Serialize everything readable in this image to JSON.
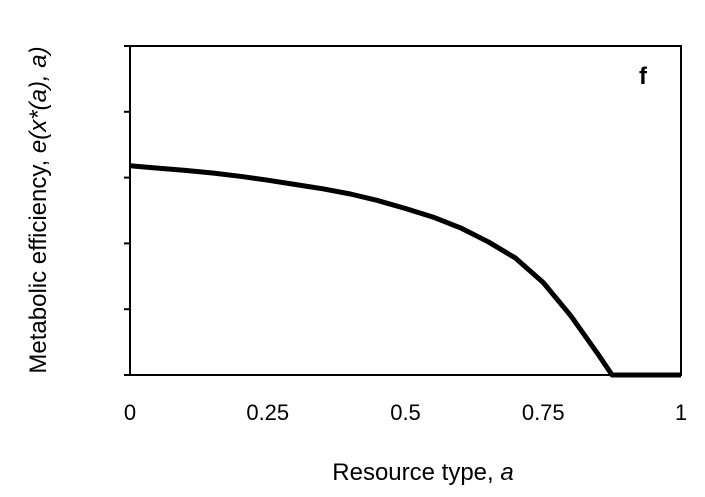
{
  "chart_data": {
    "type": "line",
    "panel_label": "f",
    "xlabel": {
      "text": "Resource type, ",
      "var": "a"
    },
    "ylabel": {
      "text": "Metabolic efficiency, ",
      "var": "e(x*(a), a)"
    },
    "xlim": [
      0,
      1
    ],
    "ylim": [
      0,
      1
    ],
    "xticks": [
      0,
      0.25,
      0.5,
      0.75,
      1
    ],
    "xtick_labels": [
      "0",
      "0.25",
      "0.5",
      "0.75",
      "1"
    ],
    "yticks": [
      0,
      0.2,
      0.4,
      0.6,
      0.8,
      1
    ],
    "ytick_labels": [
      "",
      "",
      "",
      "",
      "",
      ""
    ],
    "grid": false,
    "series": [
      {
        "x": [
          0,
          0.05,
          0.1,
          0.15,
          0.2,
          0.25,
          0.3,
          0.35,
          0.4,
          0.45,
          0.5,
          0.55,
          0.6,
          0.65,
          0.7,
          0.75,
          0.8,
          0.85,
          0.875,
          0.9,
          0.95,
          1
        ],
        "y": [
          0.636,
          0.629,
          0.622,
          0.614,
          0.604,
          0.592,
          0.579,
          0.566,
          0.55,
          0.53,
          0.506,
          0.48,
          0.447,
          0.405,
          0.355,
          0.281,
          0.18,
          0.062,
          0,
          0,
          0,
          0
        ],
        "color": "#000000"
      }
    ]
  }
}
